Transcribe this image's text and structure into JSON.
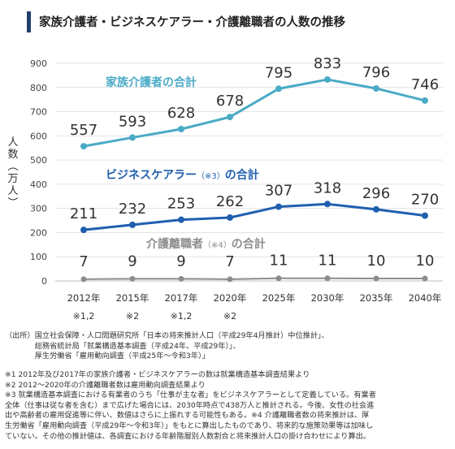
{
  "title": "家族介護者・ビジネスケアラー・介護離職者の人数の推移",
  "y_axis_label_chars": [
    "人",
    "数",
    "︵",
    "万",
    "人",
    "︶"
  ],
  "chart_data": {
    "type": "line",
    "categories": [
      "2012年",
      "2015年",
      "2017年",
      "2020年",
      "2025年",
      "2030年",
      "2035年",
      "2040年"
    ],
    "category_notes": [
      "※1,2",
      "※2",
      "※1,2",
      "※2",
      "",
      "",
      "",
      ""
    ],
    "ylim": [
      0,
      900
    ],
    "yticks": [
      "0",
      "100",
      "200",
      "300",
      "400",
      "500",
      "600",
      "700",
      "800",
      "900"
    ],
    "ytick_values": [
      0,
      100,
      200,
      300,
      400,
      500,
      600,
      700,
      800,
      900
    ],
    "grid": true,
    "series": [
      {
        "name": "家族介護者の合計",
        "color": "#4aaac6",
        "values": [
          557,
          593,
          628,
          678,
          795,
          833,
          796,
          746
        ]
      },
      {
        "name": "ビジネスケアラー（※3）の合計",
        "color": "#1f5fae",
        "values": [
          211,
          232,
          253,
          262,
          307,
          318,
          296,
          270
        ]
      },
      {
        "name": "介護離職者（※4）の合計",
        "color": "#8c8c8c",
        "values": [
          7,
          9,
          9,
          7,
          11,
          11,
          10,
          10
        ]
      }
    ]
  },
  "source_text": "（出所）国立社会保障・人口問題研究所「日本の将来推計人口（平成29年4月推計）中位推計」、\n　　　　総務省統計局「就業構造基本調査（平成24年、平成29年）」、\n　　　　厚生労働省「雇用動向調査（平成25年～令和3年）」",
  "footnotes": "※1 2012年及び2017年の家族介護者・ビジネスケアラーの数は就業構造基本調査結果より\n※2 2012～2020年の介護離職者数は雇用動向調査結果より\n※3 就業構造基本調査における有業者のうち「仕事が主な者」をビジネスケアラーとして定義している。有業者\n全体（仕事は従な者を含む）まで広げた場合には、2030年時点で438万人と推計される。今後、女性の社会進\n出や高齢者の雇用促進等に伴い、数値はさらに上振れする可能性もある。※4 介護離職者数の将来推計は、厚\n生労働省「雇用動向調査（平成29年～令和3年）」をもとに算出したものであり、将来的な施策効果等は加味し\nていない。その他の推計値は、各調査における年齢階層別人数割合と将来推計人口の掛け合わせにより算出。"
}
